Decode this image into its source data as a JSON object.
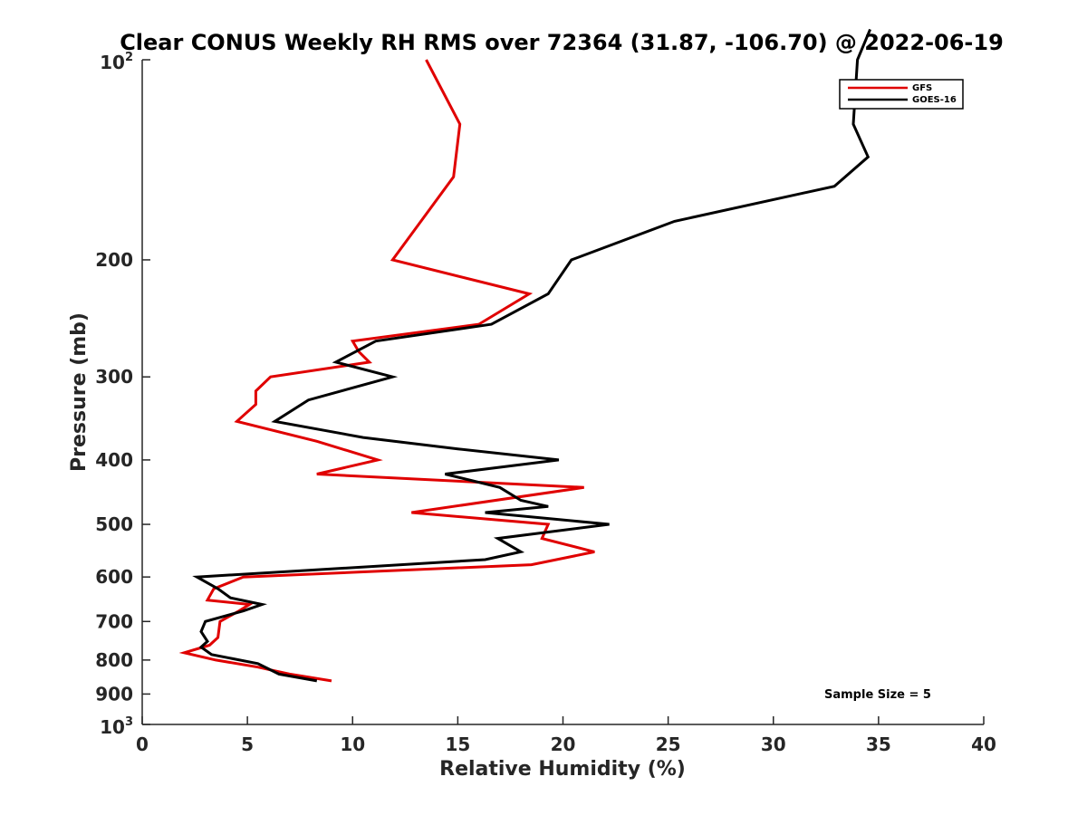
{
  "chart_data": {
    "type": "line",
    "title": "Clear CONUS Weekly RH RMS over 72364 (31.87, -106.70) @ 2022-06-19",
    "xlabel": "Relative Humidity (%)",
    "ylabel": "Pressure (mb)",
    "xlim": [
      0,
      40
    ],
    "ylim": [
      100,
      1000
    ],
    "y_scale": "log",
    "y_reversed": true,
    "grid": false,
    "legend_position": "top-right",
    "x_ticks": [
      {
        "v": 0,
        "label": "0"
      },
      {
        "v": 5,
        "label": "5"
      },
      {
        "v": 10,
        "label": "10"
      },
      {
        "v": 15,
        "label": "15"
      },
      {
        "v": 20,
        "label": "20"
      },
      {
        "v": 25,
        "label": "25"
      },
      {
        "v": 30,
        "label": "30"
      },
      {
        "v": 35,
        "label": "35"
      },
      {
        "v": 40,
        "label": "40"
      }
    ],
    "y_ticks": [
      {
        "v": 100,
        "base": "10",
        "exp": "2"
      },
      {
        "v": 200,
        "label": "200"
      },
      {
        "v": 300,
        "label": "300"
      },
      {
        "v": 400,
        "label": "400"
      },
      {
        "v": 500,
        "label": "500"
      },
      {
        "v": 600,
        "label": "600"
      },
      {
        "v": 700,
        "label": "700"
      },
      {
        "v": 800,
        "label": "800"
      },
      {
        "v": 900,
        "label": "900"
      },
      {
        "v": 1000,
        "base": "10",
        "exp": "3"
      }
    ],
    "series": [
      {
        "name": "GFS",
        "color": "#e00000",
        "points": [
          {
            "x": 13.5,
            "p": 100
          },
          {
            "x": 15.1,
            "p": 125
          },
          {
            "x": 14.8,
            "p": 150
          },
          {
            "x": 11.9,
            "p": 200
          },
          {
            "x": 18.4,
            "p": 225
          },
          {
            "x": 16.0,
            "p": 250
          },
          {
            "x": 10.0,
            "p": 265
          },
          {
            "x": 10.3,
            "p": 275
          },
          {
            "x": 10.8,
            "p": 285
          },
          {
            "x": 6.1,
            "p": 300
          },
          {
            "x": 5.4,
            "p": 315
          },
          {
            "x": 5.4,
            "p": 330
          },
          {
            "x": 4.5,
            "p": 350
          },
          {
            "x": 8.3,
            "p": 375
          },
          {
            "x": 11.2,
            "p": 400
          },
          {
            "x": 8.3,
            "p": 420
          },
          {
            "x": 21.0,
            "p": 440
          },
          {
            "x": 12.8,
            "p": 480
          },
          {
            "x": 19.3,
            "p": 500
          },
          {
            "x": 19.0,
            "p": 525
          },
          {
            "x": 21.5,
            "p": 550
          },
          {
            "x": 18.5,
            "p": 575
          },
          {
            "x": 4.8,
            "p": 600
          },
          {
            "x": 3.4,
            "p": 625
          },
          {
            "x": 3.1,
            "p": 650
          },
          {
            "x": 5.1,
            "p": 660
          },
          {
            "x": 4.6,
            "p": 675
          },
          {
            "x": 3.7,
            "p": 700
          },
          {
            "x": 3.6,
            "p": 740
          },
          {
            "x": 3.2,
            "p": 760
          },
          {
            "x": 2.0,
            "p": 780
          },
          {
            "x": 3.5,
            "p": 800
          },
          {
            "x": 5.5,
            "p": 820
          },
          {
            "x": 7.0,
            "p": 840
          },
          {
            "x": 9.0,
            "p": 860
          }
        ]
      },
      {
        "name": "GOES-16",
        "color": "#000000",
        "points": [
          {
            "x": 34.6,
            "p": 90
          },
          {
            "x": 34.0,
            "p": 100
          },
          {
            "x": 33.8,
            "p": 125
          },
          {
            "x": 34.5,
            "p": 140
          },
          {
            "x": 32.9,
            "p": 155
          },
          {
            "x": 25.3,
            "p": 175
          },
          {
            "x": 20.4,
            "p": 200
          },
          {
            "x": 19.3,
            "p": 225
          },
          {
            "x": 16.6,
            "p": 250
          },
          {
            "x": 11.1,
            "p": 265
          },
          {
            "x": 9.2,
            "p": 285
          },
          {
            "x": 11.9,
            "p": 300
          },
          {
            "x": 7.9,
            "p": 325
          },
          {
            "x": 6.3,
            "p": 350
          },
          {
            "x": 10.5,
            "p": 370
          },
          {
            "x": 15.0,
            "p": 385
          },
          {
            "x": 19.8,
            "p": 400
          },
          {
            "x": 14.4,
            "p": 420
          },
          {
            "x": 17.0,
            "p": 440
          },
          {
            "x": 18.0,
            "p": 460
          },
          {
            "x": 19.3,
            "p": 470
          },
          {
            "x": 16.3,
            "p": 480
          },
          {
            "x": 22.2,
            "p": 500
          },
          {
            "x": 16.9,
            "p": 525
          },
          {
            "x": 18.0,
            "p": 550
          },
          {
            "x": 16.3,
            "p": 565
          },
          {
            "x": 2.6,
            "p": 600
          },
          {
            "x": 3.6,
            "p": 625
          },
          {
            "x": 4.2,
            "p": 645
          },
          {
            "x": 5.7,
            "p": 660
          },
          {
            "x": 4.8,
            "p": 675
          },
          {
            "x": 3.0,
            "p": 700
          },
          {
            "x": 2.8,
            "p": 725
          },
          {
            "x": 3.1,
            "p": 750
          },
          {
            "x": 2.8,
            "p": 765
          },
          {
            "x": 3.3,
            "p": 785
          },
          {
            "x": 5.5,
            "p": 810
          },
          {
            "x": 6.5,
            "p": 840
          },
          {
            "x": 8.3,
            "p": 860
          }
        ]
      }
    ],
    "annotation": "Sample Size = 5"
  }
}
